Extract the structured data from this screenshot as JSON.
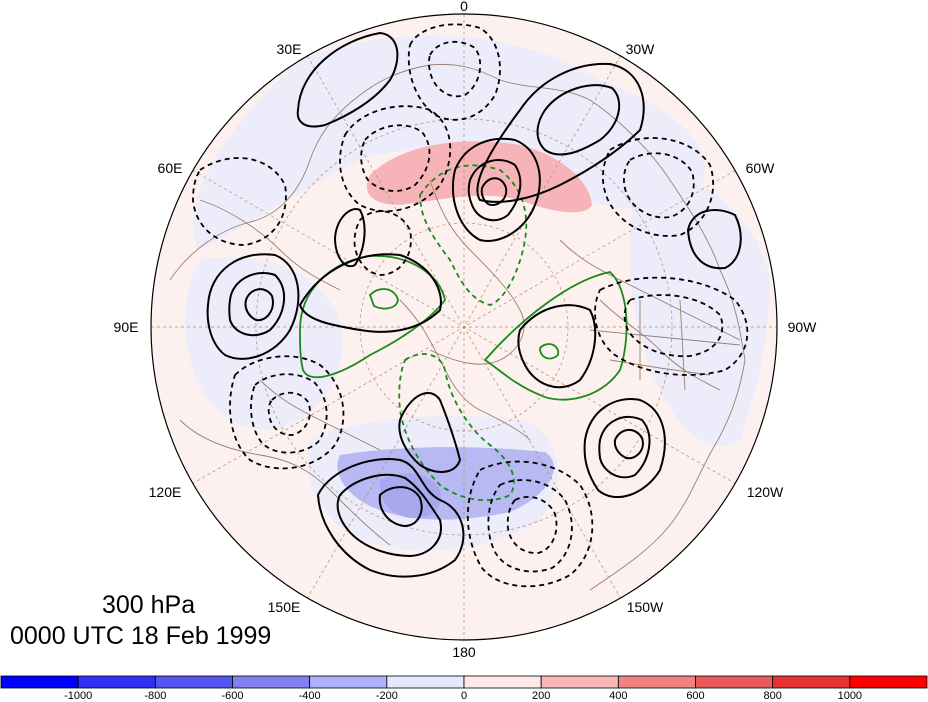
{
  "map": {
    "level_label": "300 hPa",
    "time_label": "0000 UTC 18 Feb 1999",
    "longitude_labels": [
      "0",
      "30W",
      "60W",
      "90W",
      "120W",
      "150W",
      "180",
      "150E",
      "120E",
      "90E",
      "60E",
      "30E"
    ]
  },
  "colorbar": {
    "tick_labels": [
      "-1000",
      "-800",
      "-600",
      "-400",
      "-200",
      "0",
      "200",
      "400",
      "600",
      "800",
      "1000"
    ],
    "colors": [
      "#0000ff",
      "#3030f5",
      "#5555f0",
      "#8080f0",
      "#b0b0f8",
      "#e6e6fc",
      "#fde9e9",
      "#f8b8b8",
      "#f08282",
      "#eb5a5a",
      "#e83232",
      "#ff0000"
    ]
  },
  "colors": {
    "coastline": "#9a8170",
    "positive_contour": "#000000",
    "negative_contour": "#000000",
    "green_contour": "#1a8a1a",
    "grid": "#b08a6a"
  }
}
